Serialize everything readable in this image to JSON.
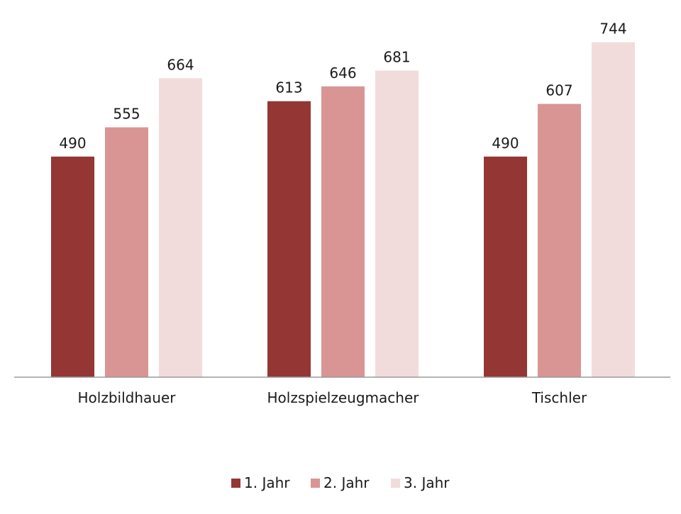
{
  "chart_data": {
    "type": "bar",
    "title": "",
    "xlabel": "",
    "ylabel": "",
    "categories": [
      "Holzbildhauer",
      "Holzspielzeugmacher",
      "Tischler"
    ],
    "series": [
      {
        "name": "1. Jahr",
        "values": [
          490,
          613,
          490
        ],
        "color": "#943634"
      },
      {
        "name": "2. Jahr",
        "values": [
          555,
          646,
          607
        ],
        "color": "#d99594"
      },
      {
        "name": "3. Jahr",
        "values": [
          664,
          681,
          744
        ],
        "color": "#f2dcdb"
      }
    ],
    "ylim": [
      0,
      800
    ],
    "grid": false,
    "y_axis_visible": false,
    "data_labels": true,
    "legend_position": "bottom"
  }
}
